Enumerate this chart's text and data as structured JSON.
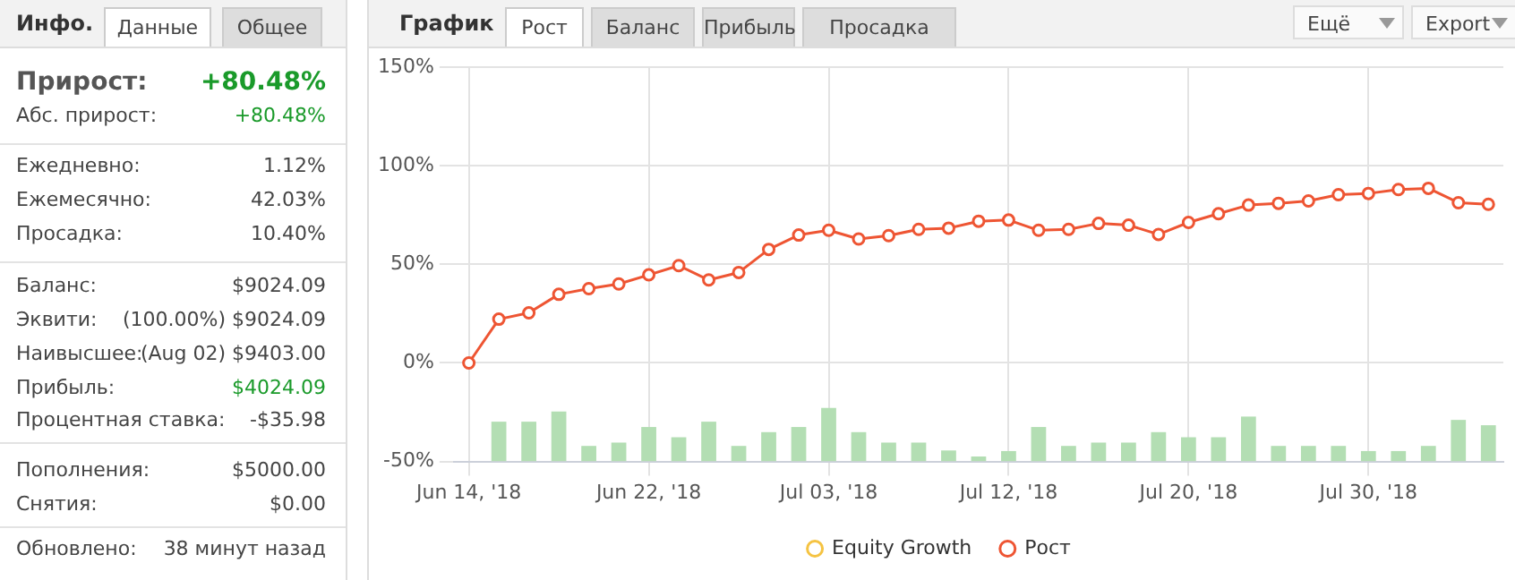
{
  "chart_data": [
    {
      "type": "other",
      "title": "Инфо.",
      "annotations": [
        "Данные",
        "Общее",
        "Прирост:",
        "+80.48%",
        "Абс. прирост:",
        "+80.48%",
        "Ежедневно:",
        "1.12%",
        "Ежемесячно:",
        "42.03%",
        "Просадка:",
        "10.40%",
        "Баланс:",
        "$9024.09",
        "Эквити:",
        "(100.00%) $9024.09",
        "Наивысшее:",
        "(Aug 02) $9403.00",
        "Прибыль:",
        "$4024.09",
        "Процентная ставка:",
        "-$35.98",
        "Пополнения:",
        "$5000.00",
        "Снятия:",
        "$0.00",
        "Обновлено:",
        "38 минут назад"
      ]
    },
    {
      "type": "line",
      "title": "График",
      "annotations": [
        "Рост",
        "Баланс",
        "Прибыль",
        "Просадка",
        "Ещё",
        "Export"
      ],
      "categories": [
        "Jun 14, '18",
        null,
        null,
        null,
        null,
        null,
        "Jun 22, '18",
        null,
        null,
        null,
        null,
        null,
        "Jul 03, '18",
        null,
        null,
        null,
        null,
        null,
        "Jul 12, '18",
        null,
        null,
        null,
        null,
        null,
        "Jul 20, '18",
        null,
        null,
        null,
        null,
        null,
        "Jul 30, '18",
        null,
        null,
        null,
        null
      ],
      "series": [
        {
          "type": "bar",
          "color": "#b3deb3",
          "base": [
            null,
            -50,
            -50,
            -50,
            -50,
            -50,
            -50,
            -50,
            -50,
            -50,
            -50,
            -50,
            -50,
            -50,
            -50,
            -50,
            -50,
            -50,
            -50,
            -50,
            -50,
            -50,
            -50,
            -50,
            -50,
            -50,
            -50,
            -50,
            -50,
            -50,
            -50,
            -50,
            -50,
            -50,
            -50
          ],
          "values": [
            null,
            20.2,
            20.2,
            25.4,
            7.9,
            9.6,
            17.5,
            12.3,
            20.2,
            7.9,
            14.9,
            17.5,
            27.2,
            14.9,
            9.6,
            9.6,
            5.6,
            2.6,
            5.3,
            17.5,
            7.9,
            9.6,
            9.6,
            14.9,
            12.3,
            12.3,
            22.8,
            7.9,
            7.9,
            7.9,
            5.3,
            5.3,
            7.9,
            21.1,
            18.4
          ]
        },
        {
          "name": "Equity Growth",
          "color": "#f5c342",
          "values": [
            null,
            null,
            null,
            null,
            null,
            null,
            null,
            null,
            null,
            null,
            null,
            null,
            null,
            null,
            null,
            null,
            null,
            null,
            null,
            null,
            null,
            null,
            null,
            null,
            null,
            null,
            null,
            null,
            null,
            null,
            null,
            null,
            null,
            null,
            null
          ]
        },
        {
          "name": "Рост",
          "color": "#ee5533",
          "values": [
            0,
            22.2,
            25.4,
            34.8,
            37.7,
            40.1,
            44.7,
            49.4,
            42.1,
            45.9,
            57.6,
            64.9,
            67.3,
            62.9,
            64.6,
            67.8,
            68.4,
            71.9,
            72.5,
            67.3,
            67.8,
            70.8,
            69.9,
            65.2,
            71.3,
            75.7,
            80.1,
            81.0,
            82.2,
            85.4,
            86.0,
            88.0,
            88.6,
            81.3,
            80.5
          ]
        }
      ],
      "ylim": [
        -50,
        150
      ],
      "yticks": [
        {
          "value": -50,
          "label": "-50%"
        },
        {
          "value": 0,
          "label": "0%"
        },
        {
          "value": 50,
          "label": "50%"
        },
        {
          "value": 100,
          "label": "100%"
        },
        {
          "value": 150,
          "label": "150%"
        }
      ],
      "grid": true,
      "legend": "bottom",
      "marker": "circle"
    }
  ]
}
